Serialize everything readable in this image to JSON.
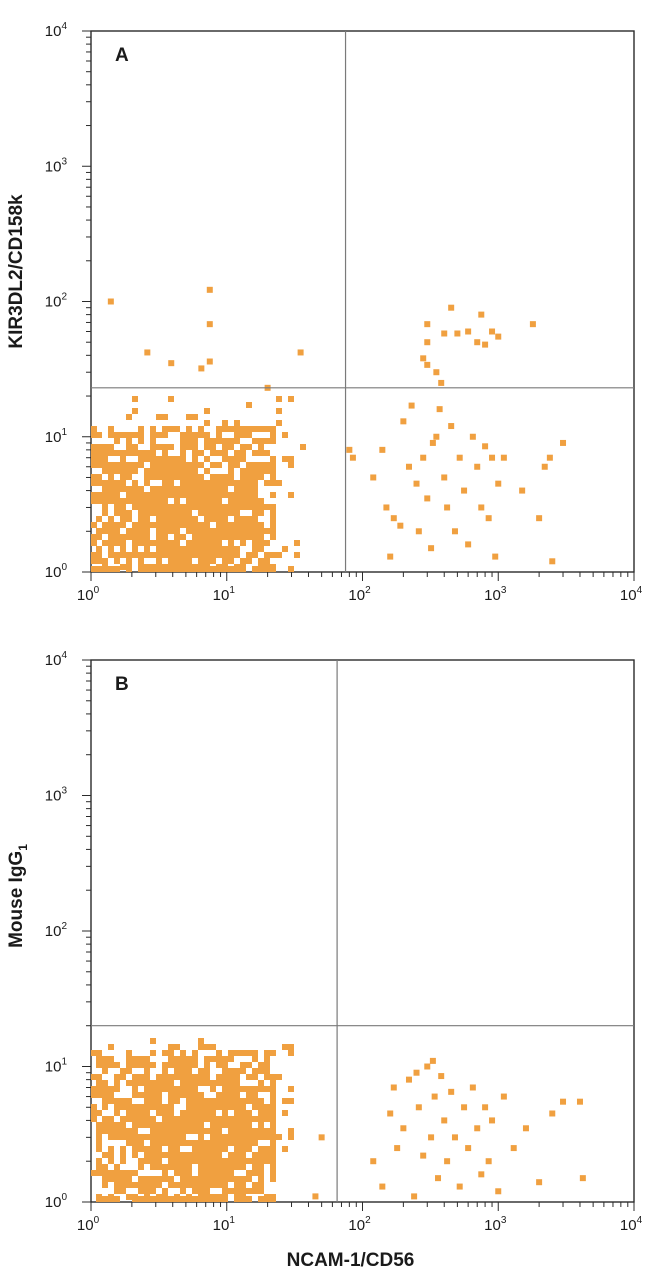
{
  "chart_data": [
    {
      "type": "scatter",
      "panel_label": "A",
      "xlabel": "",
      "ylabel": "KIR3DL2/CD158k",
      "xscale": "log",
      "yscale": "log",
      "xlim": [
        1,
        10000
      ],
      "ylim": [
        1,
        10000
      ],
      "tick_labels": [
        "10^0",
        "10^1",
        "10^2",
        "10^3",
        "10^4"
      ],
      "quadrant_gate": {
        "x": 75,
        "y": 23
      },
      "color": "#f0a040",
      "clusters": [
        {
          "xmin": 1.0,
          "xmax": 20,
          "ymin": 1.0,
          "ymax": 12,
          "n": 1100,
          "xc": 5,
          "yc": 3
        },
        {
          "xmin": 1.0,
          "xmax": 33,
          "ymin": 1.0,
          "ymax": 20,
          "n": 180,
          "xc": 6,
          "yc": 4
        }
      ],
      "points": [
        [
          1.4,
          100
        ],
        [
          7.5,
          122
        ],
        [
          7.5,
          68
        ],
        [
          2.6,
          42
        ],
        [
          3.9,
          35
        ],
        [
          6.5,
          32
        ],
        [
          7.5,
          36
        ],
        [
          35,
          42
        ],
        [
          20,
          23
        ],
        [
          300,
          68
        ],
        [
          300,
          50
        ],
        [
          400,
          58
        ],
        [
          450,
          90
        ],
        [
          500,
          58
        ],
        [
          600,
          60
        ],
        [
          750,
          80
        ],
        [
          700,
          50
        ],
        [
          900,
          60
        ],
        [
          800,
          48
        ],
        [
          1000,
          55
        ],
        [
          1800,
          68
        ],
        [
          280,
          38
        ],
        [
          300,
          34
        ],
        [
          350,
          30
        ],
        [
          380,
          25
        ],
        [
          80,
          8
        ],
        [
          85,
          7
        ],
        [
          120,
          5
        ],
        [
          150,
          3
        ],
        [
          170,
          2.5
        ],
        [
          200,
          13
        ],
        [
          220,
          6
        ],
        [
          250,
          4.5
        ],
        [
          260,
          2
        ],
        [
          280,
          7
        ],
        [
          300,
          3.5
        ],
        [
          320,
          1.5
        ],
        [
          330,
          9
        ],
        [
          350,
          10
        ],
        [
          370,
          16
        ],
        [
          400,
          5
        ],
        [
          420,
          3
        ],
        [
          450,
          12
        ],
        [
          480,
          2
        ],
        [
          520,
          7
        ],
        [
          560,
          4
        ],
        [
          600,
          1.6
        ],
        [
          650,
          10
        ],
        [
          700,
          6
        ],
        [
          750,
          3
        ],
        [
          800,
          8.5
        ],
        [
          850,
          2.5
        ],
        [
          900,
          7
        ],
        [
          950,
          1.3
        ],
        [
          1000,
          4.5
        ],
        [
          1100,
          7
        ],
        [
          1500,
          4
        ],
        [
          2000,
          2.5
        ],
        [
          2200,
          6
        ],
        [
          2400,
          7
        ],
        [
          2500,
          1.2
        ],
        [
          3000,
          9
        ],
        [
          230,
          17
        ],
        [
          140,
          8
        ],
        [
          160,
          1.3
        ],
        [
          190,
          2.2
        ]
      ]
    },
    {
      "type": "scatter",
      "panel_label": "B",
      "xlabel": "NCAM-1/CD56",
      "ylabel": "Mouse IgG",
      "ylabel_sub": "1",
      "xscale": "log",
      "yscale": "log",
      "xlim": [
        1,
        10000
      ],
      "ylim": [
        1,
        10000
      ],
      "tick_labels": [
        "10^0",
        "10^1",
        "10^2",
        "10^3",
        "10^4"
      ],
      "quadrant_gate": {
        "x": 65,
        "y": 20
      },
      "color": "#f0a040",
      "clusters": [
        {
          "xmin": 1.0,
          "xmax": 20,
          "ymin": 1.0,
          "ymax": 13,
          "n": 1000,
          "xc": 7,
          "yc": 3.5
        },
        {
          "xmin": 1.0,
          "xmax": 28,
          "ymin": 1.0,
          "ymax": 16,
          "n": 160,
          "xc": 6,
          "yc": 4
        }
      ],
      "points": [
        [
          45,
          1.1
        ],
        [
          50,
          3
        ],
        [
          120,
          2
        ],
        [
          140,
          1.3
        ],
        [
          170,
          7
        ],
        [
          180,
          2.5
        ],
        [
          200,
          3.5
        ],
        [
          220,
          8
        ],
        [
          240,
          1.1
        ],
        [
          260,
          5
        ],
        [
          280,
          2.2
        ],
        [
          300,
          10
        ],
        [
          320,
          3
        ],
        [
          340,
          6
        ],
        [
          360,
          1.5
        ],
        [
          380,
          8.5
        ],
        [
          400,
          4
        ],
        [
          420,
          2
        ],
        [
          450,
          6.5
        ],
        [
          480,
          3
        ],
        [
          520,
          1.3
        ],
        [
          560,
          5
        ],
        [
          600,
          2.5
        ],
        [
          650,
          7
        ],
        [
          700,
          3.5
        ],
        [
          750,
          1.6
        ],
        [
          800,
          5
        ],
        [
          850,
          2
        ],
        [
          900,
          4
        ],
        [
          1000,
          1.2
        ],
        [
          1100,
          6
        ],
        [
          1300,
          2.5
        ],
        [
          1600,
          3.5
        ],
        [
          2000,
          1.4
        ],
        [
          2500,
          4.5
        ],
        [
          3000,
          5.5
        ],
        [
          4000,
          5.5
        ],
        [
          4200,
          1.5
        ],
        [
          330,
          11
        ],
        [
          250,
          9
        ],
        [
          160,
          4.5
        ]
      ]
    }
  ]
}
